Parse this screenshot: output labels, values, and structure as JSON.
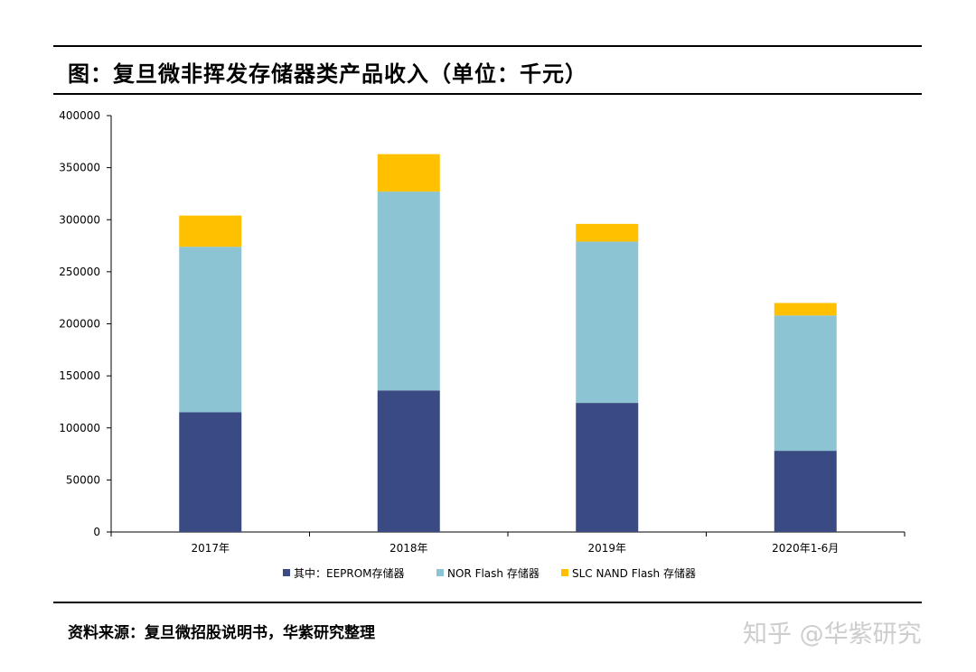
{
  "title": "图：复旦微非挥发存储器类产品收入（单位：千元）",
  "source": "资料来源：复旦微招股说明书，华紫研究整理",
  "watermark": "知乎 @华紫研究",
  "chart_data": {
    "type": "bar",
    "stacked": true,
    "title": "",
    "xlabel": "",
    "ylabel": "",
    "categories": [
      "2017年",
      "2018年",
      "2019年",
      "2020年1-6月"
    ],
    "ylim": [
      0,
      400000
    ],
    "yticks": [
      0,
      50000,
      100000,
      150000,
      200000,
      250000,
      300000,
      350000,
      400000
    ],
    "grid": false,
    "legend_position": "bottom",
    "series": [
      {
        "name": "其中：EEPROM存储器",
        "color": "#3a4a82",
        "values": [
          115000,
          136000,
          124000,
          78000
        ]
      },
      {
        "name": "NOR Flash 存储器",
        "color": "#8cc4d4",
        "values": [
          159000,
          191000,
          155000,
          130000
        ]
      },
      {
        "name": "SLC NAND Flash 存储器",
        "color": "#ffc000",
        "values": [
          30000,
          36000,
          17000,
          12000
        ]
      }
    ]
  }
}
